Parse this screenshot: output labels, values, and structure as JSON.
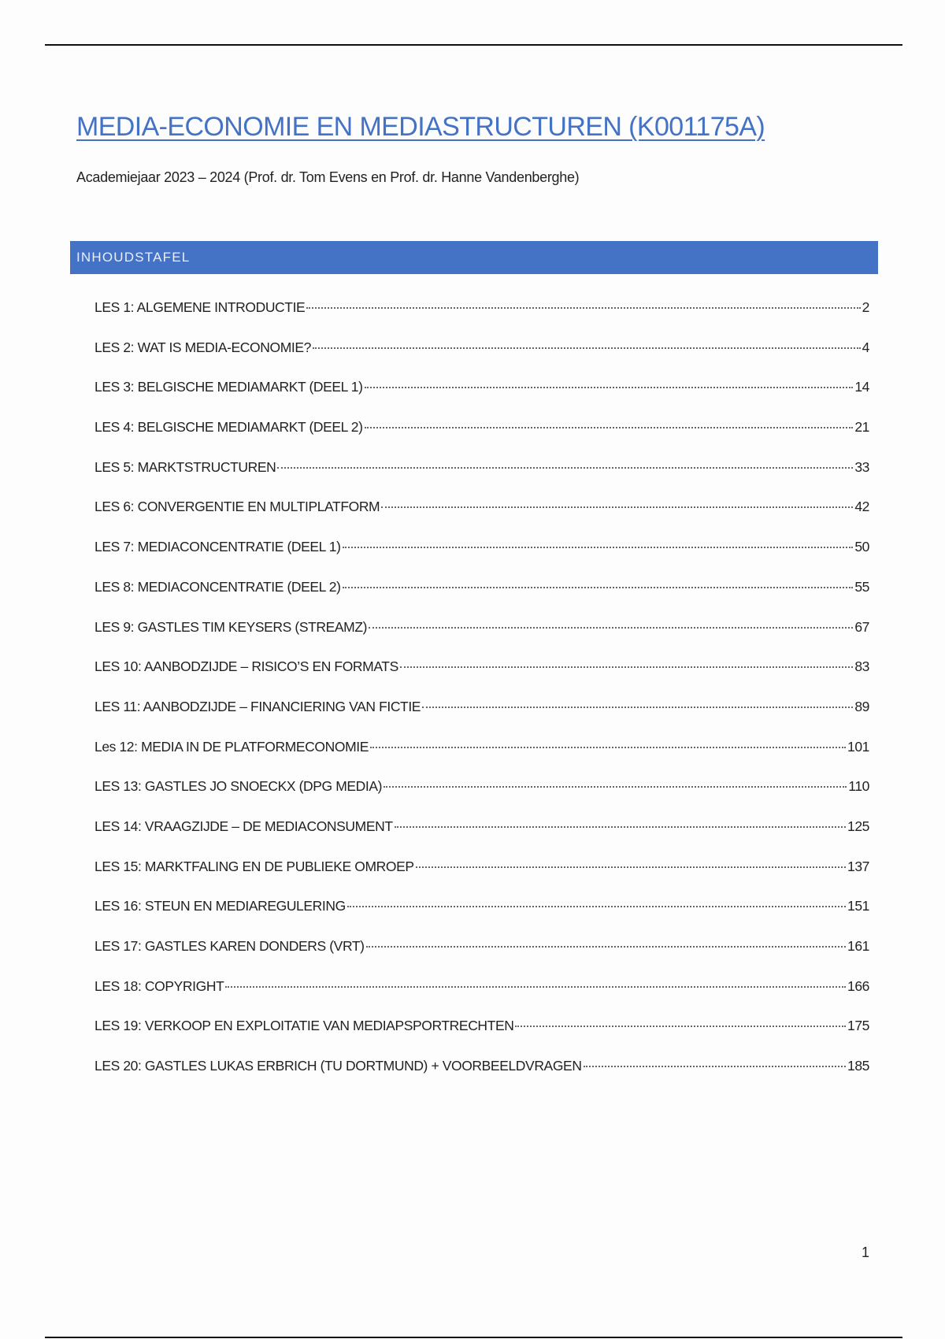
{
  "document": {
    "title": "MEDIA-ECONOMIE EN MEDIASTRUCTUREN (K001175A)",
    "subtitle": "Academiejaar 2023 – 2024 (Prof. dr. Tom Evens en Prof. dr. Hanne Vandenberghe)",
    "toc_heading": "INHOUDSTAFEL",
    "accent_color": "#4472c4",
    "toc": [
      {
        "label": "LES 1: ALGEMENE INTRODUCTIE",
        "page": "2"
      },
      {
        "label": "LES 2: WAT IS MEDIA-ECONOMIE?",
        "page": "4"
      },
      {
        "label": "LES 3: BELGISCHE MEDIAMARKT (DEEL 1)",
        "page": "14"
      },
      {
        "label": "LES 4:  BELGISCHE MEDIAMARKT (DEEL 2)",
        "page": "21"
      },
      {
        "label": "LES 5:  MARKTSTRUCTUREN",
        "page": "33"
      },
      {
        "label": "LES 6:  CONVERGENTIE EN MULTIPLATFORM",
        "page": "42"
      },
      {
        "label": "LES 7: MEDIACONCENTRATIE (DEEL 1)",
        "page": "50"
      },
      {
        "label": "LES 8: MEDIACONCENTRATIE (DEEL 2)",
        "page": "55"
      },
      {
        "label": "LES 9: GASTLES TIM KEYSERS (STREAMZ)",
        "page": "67"
      },
      {
        "label": "LES 10: AANBODZIJDE – RISICO’S EN FORMATS",
        "page": "83"
      },
      {
        "label": "LES 11: AANBODZIJDE – FINANCIERING VAN FICTIE",
        "page": "89"
      },
      {
        "label": "Les 12: MEDIA IN DE PLATFORMECONOMIE",
        "page": "101"
      },
      {
        "label": "LES 13: GASTLES JO SNOECKX (DPG MEDIA)",
        "page": "110"
      },
      {
        "label": "LES 14: VRAAGZIJDE – DE MEDIACONSUMENT",
        "page": "125"
      },
      {
        "label": "LES 15: MARKTFALING EN DE PUBLIEKE OMROEP",
        "page": "137"
      },
      {
        "label": "LES 16: STEUN EN MEDIAREGULERING",
        "page": "151"
      },
      {
        "label": "LES 17: GASTLES KAREN DONDERS (VRT)",
        "page": "161"
      },
      {
        "label": "LES 18: COPYRIGHT",
        "page": "166"
      },
      {
        "label": "LES 19: VERKOOP EN EXPLOITATIE VAN MEDIAPSPORTRECHTEN",
        "page": "175"
      },
      {
        "label": "LES 20: GASTLES LUKAS ERBRICH (TU DORTMUND) + VOORBEELDVRAGEN",
        "page": "185"
      }
    ],
    "page_number": "1"
  }
}
